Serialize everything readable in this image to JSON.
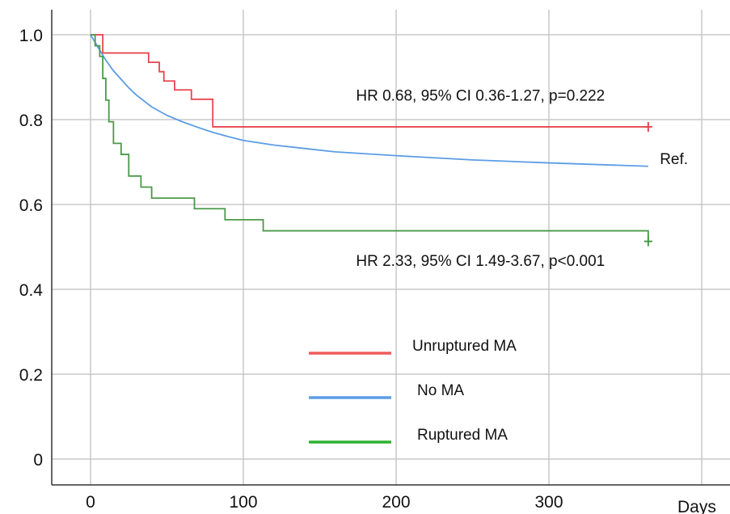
{
  "chart_data": {
    "type": "line",
    "subtype": "kaplan-meier",
    "title": "",
    "xlabel": "Days",
    "ylabel": "",
    "xlim": [
      0,
      400
    ],
    "ylim": [
      0,
      1.0
    ],
    "x_ticks": [
      0,
      100,
      200,
      300
    ],
    "x_tick_labels": [
      "0",
      "100",
      "200",
      "300"
    ],
    "y_ticks": [
      0,
      0.2,
      0.4,
      0.6,
      0.8,
      1.0
    ],
    "y_tick_labels": [
      "0",
      "0.2",
      "0.4",
      "0.6",
      "0.8",
      "1.0"
    ],
    "grid": true,
    "legend_position": "bottom-center",
    "series": [
      {
        "name": "Unruptured MA",
        "color": "#e8454f",
        "legend_color": "#f05a5a",
        "step": true,
        "censor_end": true,
        "x": [
          0,
          5,
          8,
          35,
          38,
          45,
          48,
          55,
          66,
          80,
          365
        ],
        "y": [
          1.0,
          1.0,
          0.957,
          0.957,
          0.935,
          0.913,
          0.891,
          0.87,
          0.848,
          0.783,
          0.783
        ]
      },
      {
        "name": "No MA",
        "color": "#5b9de4",
        "legend_color": "#5b9de4",
        "step": false,
        "censor_end": false,
        "x": [
          0,
          5,
          10,
          15,
          20,
          25,
          30,
          40,
          50,
          60,
          70,
          80,
          90,
          100,
          120,
          140,
          160,
          200,
          250,
          300,
          365
        ],
        "y": [
          1.0,
          0.97,
          0.94,
          0.915,
          0.895,
          0.875,
          0.858,
          0.83,
          0.81,
          0.795,
          0.782,
          0.77,
          0.76,
          0.751,
          0.74,
          0.732,
          0.724,
          0.715,
          0.705,
          0.698,
          0.69
        ]
      },
      {
        "name": "Ruptured MA",
        "color": "#4a9a4a",
        "legend_color": "#2db22d",
        "step": true,
        "censor_end": true,
        "x": [
          0,
          3,
          6,
          8,
          10,
          12,
          15,
          20,
          25,
          33,
          40,
          68,
          88,
          113,
          365
        ],
        "y": [
          1.0,
          0.974,
          0.949,
          0.897,
          0.846,
          0.795,
          0.744,
          0.718,
          0.667,
          0.641,
          0.615,
          0.59,
          0.564,
          0.538,
          0.513
        ]
      }
    ],
    "annotations": [
      {
        "text": "HR 0.68, 95% CI 0.36-1.27, p=0.222",
        "x": 270,
        "y": 0.845
      },
      {
        "text": "Ref.",
        "x": 380,
        "y": 0.695
      },
      {
        "text": "HR 2.33, 95% CI 1.49-3.67, p<0.001",
        "x": 270,
        "y": 0.455
      }
    ],
    "legend": [
      {
        "label": "Unruptured MA",
        "color": "#f05a5a"
      },
      {
        "label": "No MA",
        "color": "#5b9de4"
      },
      {
        "label": "Ruptured MA",
        "color": "#2db22d"
      }
    ]
  }
}
